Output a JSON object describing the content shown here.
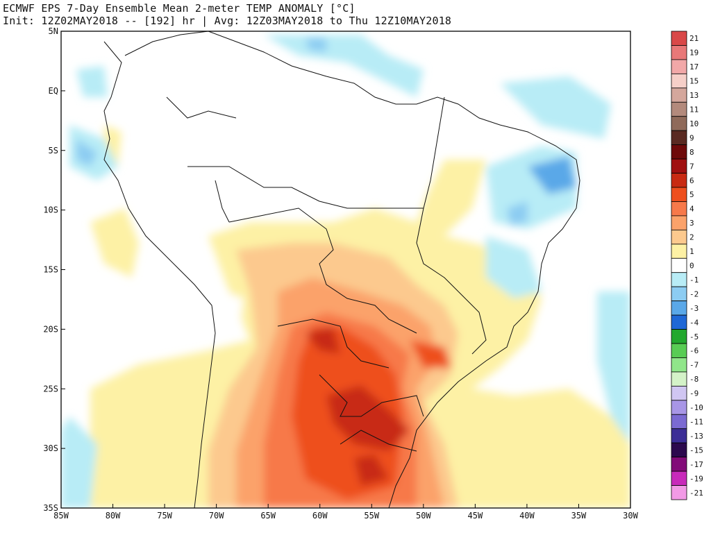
{
  "header": {
    "line1": "ECMWF EPS 7-Day Ensemble Mean 2-meter TEMP ANOMALY [°C]",
    "line2": "Init: 12Z02MAY2018 -- [192] hr | Avg: 12Z03MAY2018 to Thu 12Z10MAY2018"
  },
  "axes": {
    "x_ticks": [
      "85W",
      "80W",
      "75W",
      "70W",
      "65W",
      "60W",
      "55W",
      "50W",
      "45W",
      "40W",
      "35W",
      "30W"
    ],
    "y_ticks": [
      "5N",
      "EQ",
      "5S",
      "10S",
      "15S",
      "20S",
      "25S",
      "30S",
      "35S"
    ]
  },
  "colorbar": {
    "labels": [
      "21",
      "19",
      "17",
      "15",
      "13",
      "11",
      "10",
      "9",
      "8",
      "7",
      "6",
      "5",
      "4",
      "3",
      "2",
      "1",
      "0",
      "-1",
      "-2",
      "-3",
      "-4",
      "-5",
      "-6",
      "-7",
      "-8",
      "-9",
      "-10",
      "-11",
      "-13",
      "-15",
      "-17",
      "-19",
      "-21"
    ],
    "colors": [
      "#d94848",
      "#e87878",
      "#f2a8a8",
      "#f6cfc8",
      "#d4a79c",
      "#b38a7c",
      "#8f6a5a",
      "#5a2a22",
      "#6e0a0a",
      "#a01010",
      "#c82a12",
      "#ee4f1e",
      "#f7794a",
      "#fba26a",
      "#fcc98e",
      "#fdf1a5",
      "#ffffff",
      "#b8ecf6",
      "#8cccf2",
      "#5aa8e8",
      "#1f68d6",
      "#22a82e",
      "#58cc54",
      "#90e68a",
      "#d4f2c8",
      "#d0c6f2",
      "#a896e6",
      "#7b6ad2",
      "#3c2e96",
      "#2c0a4e",
      "#820c78",
      "#c82aba",
      "#f29ae6"
    ]
  }
}
